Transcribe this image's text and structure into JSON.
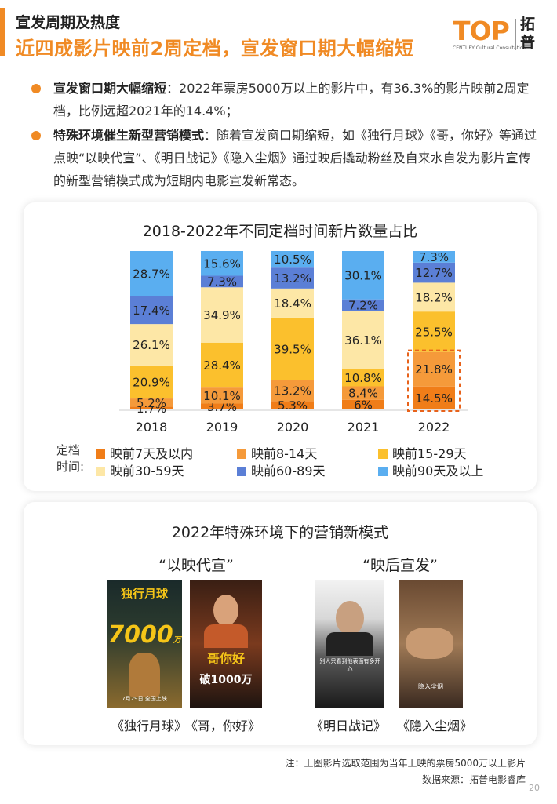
{
  "header": {
    "section": "宣发周期及热度",
    "title": "近四成影片映前2周定档，宣发窗口期大幅缩短"
  },
  "logo": {
    "text": "TOP",
    "sub": "CENTURY Cultural Consultation",
    "cn": "拓普"
  },
  "bullets": [
    {
      "lead": "宣发窗口期大幅缩短",
      "text": "：2022年票房5000万以上的影片中，有36.3%的影片映前2周定档，比例远超2021年的14.4%；"
    },
    {
      "lead": "特殊环境催生新型营销模式",
      "text": "：随着宣发窗口期缩短，如《独行月球》《哥，你好》等通过点映“以映代宣”、《明日战记》《隐入尘烟》通过映后撬动粉丝及自来水自发为影片宣传的新型营销模式成为短期内电影宣发新常态。"
    }
  ],
  "chart_data": {
    "type": "bar",
    "stacked": true,
    "normalized": true,
    "title": "2018-2022年不同定档时间新片数量占比",
    "categories": [
      "2018",
      "2019",
      "2020",
      "2021",
      "2022"
    ],
    "value_suffix": "%",
    "series": [
      {
        "name": "映前7天及以内",
        "color": "#f07d18",
        "values": [
          1.7,
          3.7,
          5.3,
          6.0,
          14.5
        ]
      },
      {
        "name": "映前8-14天",
        "color": "#f59a3a",
        "values": [
          5.2,
          10.1,
          13.2,
          8.4,
          21.8
        ]
      },
      {
        "name": "映前15-29天",
        "color": "#fbc02d",
        "values": [
          20.9,
          28.4,
          39.5,
          10.8,
          25.5
        ]
      },
      {
        "name": "映前30-59天",
        "color": "#fde7a6",
        "values": [
          26.1,
          34.9,
          18.4,
          36.1,
          18.2
        ]
      },
      {
        "name": "映前60-89天",
        "color": "#5b7fd6",
        "values": [
          17.4,
          7.3,
          13.2,
          7.2,
          12.7
        ]
      },
      {
        "name": "映前90天及以上",
        "color": "#5aaef0",
        "values": [
          28.7,
          15.6,
          10.5,
          30.1,
          7.3
        ]
      }
    ],
    "highlight": {
      "category": "2022",
      "series": [
        "映前7天及以内",
        "映前8-14天"
      ]
    },
    "legend_lead": "定档时间:",
    "legend_position": "bottom",
    "grid": false
  },
  "section2": {
    "title": "2022年特殊环境下的营销新模式",
    "group_left": "“以映代宣”",
    "group_right": "“映后宣发”",
    "captions": [
      "《独行月球》",
      "《哥，你好》",
      "《明日战记》",
      "《隐入尘烟》"
    ],
    "poster_texts": {
      "p1_title": "独行月球",
      "p1_big": "7000",
      "p1_unit": "万",
      "p1_date": "7月29日 全国上映",
      "p2_title": "哥你好",
      "p2_big": "破1000万",
      "p3_text": "别人只看到他表面有多开心",
      "p4_text": "隐入尘烟"
    }
  },
  "footnote": {
    "note": "注：上图影片选取范围为当年上映的票房5000万以上影片",
    "source": "数据来源：拓普电影睿库"
  },
  "page_number": "20"
}
